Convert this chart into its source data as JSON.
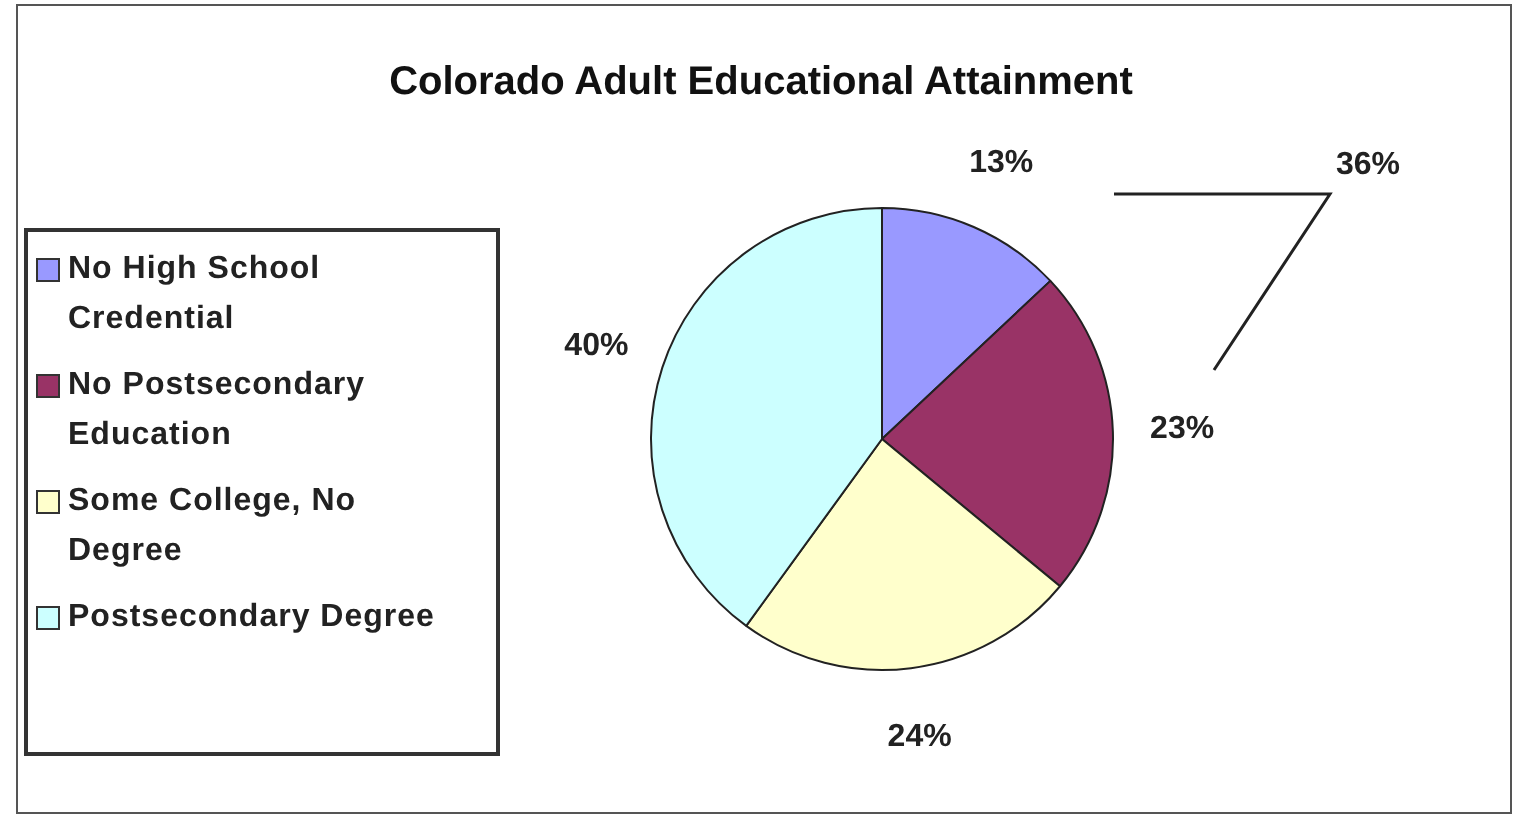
{
  "chart_data": {
    "type": "pie",
    "title": "Colorado Adult Educational Attainment",
    "categories": [
      "No High School Credential",
      "No Postsecondary Education",
      "Some College, No Degree",
      "Postsecondary Degree"
    ],
    "values": [
      13,
      23,
      24,
      40
    ],
    "colors": [
      "#9999ff",
      "#993366",
      "#ffffcc",
      "#ccffff"
    ],
    "value_labels": [
      "13%",
      "23%",
      "24%",
      "40%"
    ],
    "legend": "left",
    "annotations": [
      "36%"
    ]
  }
}
